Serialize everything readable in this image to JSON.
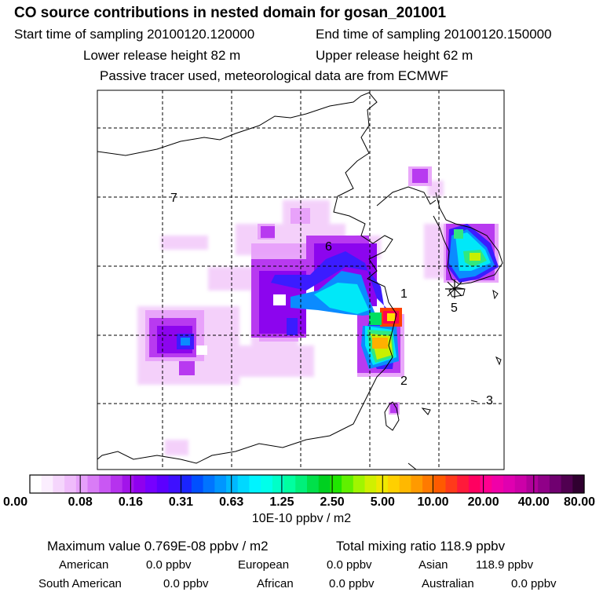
{
  "header": {
    "title": "CO  source contributions in nested domain for gosan_201001",
    "start_label": "Start time of sampling 20100120.120000",
    "end_label": "End time of sampling 20100120.150000",
    "lower_label": "Lower release height   82 m",
    "upper_label": "Upper release height   62 m",
    "passive_label": "Passive tracer used, meteorological data are from ECMWF"
  },
  "map": {
    "region_labels": [
      "1",
      "2",
      "3",
      "5",
      "6",
      "7"
    ],
    "station_marker": "gosan-receptor"
  },
  "colorbar": {
    "unit": "10E-10 ppbv / m2",
    "ticks": [
      "0.00",
      "0.08",
      "0.16",
      "0.31",
      "0.63",
      "1.25",
      "2.50",
      "5.00",
      "10.00",
      "20.00",
      "40.00",
      "80.00"
    ],
    "colors": [
      "#ffffff",
      "#fbeefe",
      "#f5d6fc",
      "#efbcfb",
      "#e6a0fa",
      "#d97cf6",
      "#c957f3",
      "#b632ee",
      "#a214ea",
      "#8f00ee",
      "#7600ff",
      "#5c00ff",
      "#3e10ff",
      "#1a24ff",
      "#0050ff",
      "#0074ff",
      "#0096ff",
      "#00b8ff",
      "#00d8ff",
      "#00f4ff",
      "#00ffea",
      "#00ffc8",
      "#00ffa0",
      "#00f07a",
      "#00e04a",
      "#00d020",
      "#20e600",
      "#60f000",
      "#a0f500",
      "#d0f000",
      "#f0e800",
      "#ffd000",
      "#ffb800",
      "#ff9a00",
      "#ff7a00",
      "#ff5a00",
      "#ff3a1a",
      "#ff1a3a",
      "#ff0060",
      "#ff0090",
      "#f000a8",
      "#e000b0",
      "#cc00a8",
      "#b0009a",
      "#900088",
      "#700070",
      "#500050",
      "#300030"
    ]
  },
  "summary": {
    "max_value": "Maximum value  0.769E-08 ppbv / m2",
    "total": "Total mixing ratio      118.9 ppbv",
    "american": {
      "label": "American",
      "value": "0.0 ppbv"
    },
    "european": {
      "label": "European",
      "value": "0.0 ppbv"
    },
    "asian": {
      "label": "Asian",
      "value": "118.9 ppbv"
    },
    "south_american": {
      "label": "South American",
      "value": "0.0 ppbv"
    },
    "african": {
      "label": "African",
      "value": "0.0 ppbv"
    },
    "australian": {
      "label": "Australian",
      "value": "0.0 ppbv"
    }
  }
}
